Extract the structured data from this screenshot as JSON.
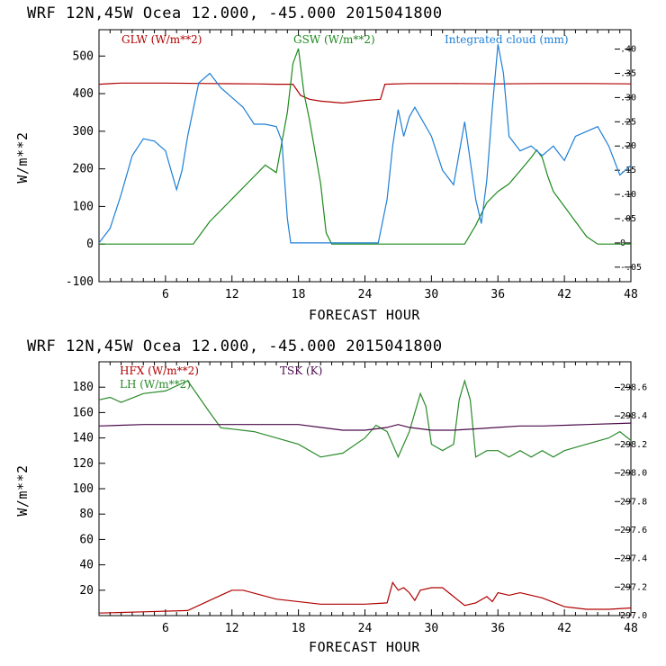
{
  "colors": {
    "glw": "#b00000",
    "gsw": "#1c8a1c",
    "cloud": "#1e7fd6",
    "hfx": "#b00000",
    "lh": "#2a8a2a",
    "tsk": "#4a0a4a"
  },
  "panels": [
    {
      "header": "WRF  12N,45W Ocea  12.000, -45.000  2015041800",
      "ylabel": "W/m**2",
      "xlabel": "FORECAST HOUR",
      "legend": [
        {
          "label": "GLW (W/m**2)",
          "color": "#b00000"
        },
        {
          "label": "GSW (W/m**2)",
          "color": "#1c8a1c"
        },
        {
          "label": "Integrated cloud (mm)",
          "color": "#1e7fd6"
        }
      ]
    },
    {
      "header": "WRF  12N,45W Ocea  12.000, -45.000  2015041800",
      "ylabel": "W/m**2",
      "xlabel": "FORECAST HOUR",
      "legend": [
        {
          "label": "HFX (W/m**2)",
          "color": "#b00000"
        },
        {
          "label": "LH  (W/m**2)",
          "color": "#2a8a2a"
        },
        {
          "label": "TSK (K)",
          "color": "#4a0a4a"
        }
      ]
    }
  ],
  "chart_data": [
    {
      "type": "line",
      "title": "WRF  12N,45W Ocea  12.000, -45.000  2015041800",
      "xlabel": "FORECAST HOUR",
      "ylabel": "W/m**2",
      "xlim": [
        0,
        48
      ],
      "xticks": [
        "6",
        "12",
        "18",
        "24",
        "30",
        "36",
        "42",
        "48"
      ],
      "ylim": [
        -100,
        570
      ],
      "yticks": [
        "-100",
        "0",
        "100",
        "200",
        "300",
        "400",
        "500"
      ],
      "y2lim": [
        -0.08,
        0.44
      ],
      "y2ticks": [
        "-.05",
        "0",
        ".05",
        ".10",
        ".15",
        ".20",
        ".25",
        ".30",
        ".35",
        ".40"
      ],
      "series": [
        {
          "name": "GLW (W/m**2)",
          "axis": "left",
          "x": [
            0,
            2,
            6,
            10,
            14,
            16,
            17.5,
            18.2,
            19,
            20,
            22,
            24,
            25.4,
            25.8,
            28,
            32,
            36,
            40,
            44,
            48
          ],
          "values": [
            425,
            428,
            428,
            427,
            426,
            425,
            425,
            395,
            385,
            380,
            375,
            382,
            385,
            425,
            427,
            427,
            426,
            427,
            427,
            426
          ]
        },
        {
          "name": "GSW (W/m**2)",
          "axis": "left",
          "x": [
            0,
            4,
            8.5,
            10,
            12,
            14,
            15,
            16,
            17,
            17.5,
            18,
            18.5,
            19,
            20,
            20.5,
            21,
            22,
            24,
            28,
            33,
            34,
            35,
            36,
            37,
            38,
            39,
            39.5,
            40,
            40.5,
            41,
            42,
            43,
            44,
            45,
            48
          ],
          "values": [
            0,
            0,
            0,
            60,
            120,
            180,
            210,
            190,
            350,
            480,
            520,
            400,
            330,
            160,
            30,
            0,
            0,
            0,
            0,
            0,
            50,
            110,
            140,
            160,
            195,
            230,
            250,
            230,
            180,
            140,
            100,
            60,
            20,
            0,
            0
          ]
        },
        {
          "name": "Integrated cloud (mm)",
          "axis": "right",
          "x": [
            0,
            1,
            2,
            3,
            4,
            5,
            6,
            6.5,
            7,
            7.5,
            8,
            9,
            10,
            11,
            12,
            13,
            14,
            15,
            16,
            16.5,
            17,
            17.3,
            18,
            20,
            22,
            24,
            25.2,
            26,
            26.5,
            27,
            27.5,
            28,
            28.5,
            29,
            30,
            31,
            32,
            33,
            34,
            34.5,
            35,
            35.5,
            36,
            36.5,
            37,
            38,
            39,
            40,
            41,
            42,
            43,
            44,
            45,
            46,
            47,
            48
          ],
          "values": [
            0,
            0.03,
            0.1,
            0.18,
            0.215,
            0.21,
            0.19,
            0.15,
            0.11,
            0.15,
            0.22,
            0.33,
            0.35,
            0.32,
            0.3,
            0.28,
            0.245,
            0.245,
            0.24,
            0.21,
            0.05,
            0,
            0,
            0,
            0,
            0,
            0,
            0.09,
            0.2,
            0.275,
            0.22,
            0.26,
            0.28,
            0.26,
            0.22,
            0.15,
            0.12,
            0.25,
            0.09,
            0.04,
            0.13,
            0.28,
            0.41,
            0.35,
            0.22,
            0.19,
            0.2,
            0.18,
            0.2,
            0.17,
            0.22,
            0.23,
            0.24,
            0.2,
            0.14,
            0.16
          ]
        }
      ]
    },
    {
      "type": "line",
      "title": "WRF  12N,45W Ocea  12.000, -45.000  2015041800",
      "xlabel": "FORECAST HOUR",
      "ylabel": "W/m**2",
      "xlim": [
        0,
        48
      ],
      "xticks": [
        "6",
        "12",
        "18",
        "24",
        "30",
        "36",
        "42",
        "48"
      ],
      "ylim": [
        0,
        200
      ],
      "yticks": [
        "20",
        "40",
        "60",
        "80",
        "100",
        "120",
        "140",
        "160",
        "180"
      ],
      "y2lim": [
        297.0,
        298.78
      ],
      "y2ticks": [
        "297.0",
        "297.2",
        "297.4",
        "297.6",
        "297.8",
        "298.0",
        "298.2",
        "298.4",
        "298.6"
      ],
      "series": [
        {
          "name": "HFX (W/m**2)",
          "axis": "left",
          "x": [
            0,
            4,
            8,
            10,
            12,
            13,
            16,
            20,
            24,
            26,
            26.5,
            27,
            27.5,
            28,
            28.5,
            29,
            30,
            31,
            32,
            33,
            34,
            35,
            35.5,
            36,
            37,
            38,
            40,
            42,
            44,
            46,
            48
          ],
          "values": [
            2,
            3,
            4,
            12,
            20,
            20,
            13,
            9,
            9,
            10,
            26,
            20,
            22,
            18,
            12,
            20,
            22,
            22,
            15,
            8,
            10,
            15,
            11,
            18,
            16,
            18,
            14,
            7,
            5,
            5,
            6
          ]
        },
        {
          "name": "LH  (W/m**2)",
          "axis": "left",
          "x": [
            0,
            1,
            2,
            4,
            6,
            8,
            10,
            11,
            12,
            14,
            16,
            18,
            20,
            22,
            24,
            25,
            26,
            27,
            28,
            29,
            29.5,
            30,
            31,
            32,
            32.5,
            33,
            33.5,
            34,
            35,
            36,
            37,
            38,
            39,
            40,
            41,
            42,
            44,
            46,
            47,
            48
          ],
          "values": [
            170,
            172,
            168,
            175,
            177,
            185,
            160,
            148,
            147,
            145,
            140,
            135,
            125,
            128,
            140,
            150,
            145,
            125,
            145,
            175,
            165,
            135,
            130,
            135,
            170,
            185,
            170,
            125,
            130,
            130,
            125,
            130,
            125,
            130,
            125,
            130,
            135,
            140,
            145,
            138
          ]
        },
        {
          "name": "TSK (K)",
          "axis": "right",
          "x": [
            0,
            4,
            8,
            12,
            16,
            18,
            20,
            22,
            24,
            25,
            26,
            27,
            28,
            30,
            32,
            34,
            36,
            38,
            40,
            44,
            48
          ],
          "values": [
            298.33,
            298.34,
            298.34,
            298.34,
            298.34,
            298.34,
            298.32,
            298.3,
            298.3,
            298.31,
            298.32,
            298.34,
            298.32,
            298.3,
            298.3,
            298.31,
            298.32,
            298.33,
            298.33,
            298.34,
            298.35
          ]
        }
      ]
    }
  ]
}
